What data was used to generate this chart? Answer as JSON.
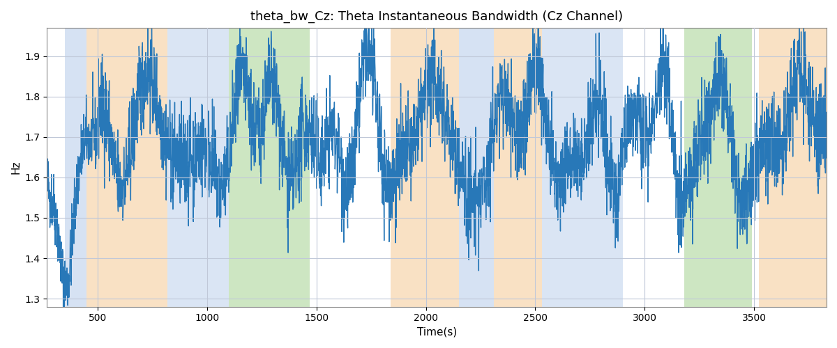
{
  "title": "theta_bw_Cz: Theta Instantaneous Bandwidth (Cz Channel)",
  "xlabel": "Time(s)",
  "ylabel": "Hz",
  "xlim": [
    270,
    3830
  ],
  "ylim": [
    1.28,
    1.97
  ],
  "yticks": [
    1.3,
    1.4,
    1.5,
    1.6,
    1.7,
    1.8,
    1.9
  ],
  "xticks": [
    500,
    1000,
    1500,
    2000,
    2500,
    3000,
    3500
  ],
  "line_color": "#2878b8",
  "line_width": 1.0,
  "background_color": "#ffffff",
  "grid_color": "#c0c8d8",
  "bands": [
    {
      "xmin": 350,
      "xmax": 450,
      "color": "#aec6e8",
      "alpha": 0.5
    },
    {
      "xmin": 450,
      "xmax": 820,
      "color": "#f4c48a",
      "alpha": 0.5
    },
    {
      "xmin": 820,
      "xmax": 1100,
      "color": "#aec6e8",
      "alpha": 0.45
    },
    {
      "xmin": 1100,
      "xmax": 1470,
      "color": "#90c878",
      "alpha": 0.45
    },
    {
      "xmin": 1840,
      "xmax": 2150,
      "color": "#f4c48a",
      "alpha": 0.5
    },
    {
      "xmin": 2150,
      "xmax": 2310,
      "color": "#aec6e8",
      "alpha": 0.5
    },
    {
      "xmin": 2310,
      "xmax": 2530,
      "color": "#f4c48a",
      "alpha": 0.5
    },
    {
      "xmin": 2530,
      "xmax": 2720,
      "color": "#aec6e8",
      "alpha": 0.45
    },
    {
      "xmin": 2720,
      "xmax": 2900,
      "color": "#aec6e8",
      "alpha": 0.45
    },
    {
      "xmin": 3180,
      "xmax": 3490,
      "color": "#90c878",
      "alpha": 0.45
    },
    {
      "xmin": 3490,
      "xmax": 3520,
      "color": "#ffffff",
      "alpha": 1.0
    },
    {
      "xmin": 3520,
      "xmax": 3830,
      "color": "#f4c48a",
      "alpha": 0.5
    }
  ],
  "seed": 42,
  "n_points": 3560
}
